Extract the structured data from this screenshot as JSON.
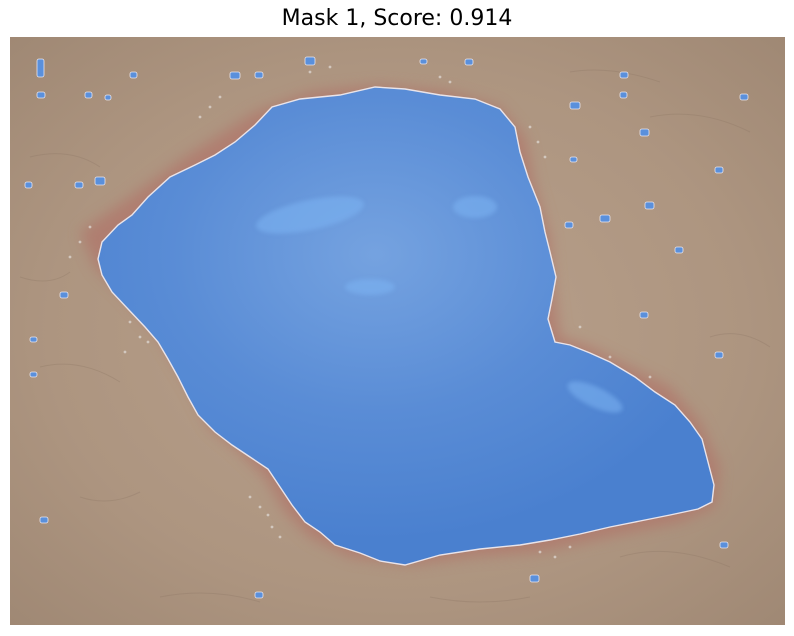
{
  "figure": {
    "title": "Mask 1, Score: 0.914"
  },
  "colors": {
    "skin_base": "#b39b86",
    "skin_light": "#c2ab97",
    "skin_dark": "#9c8470",
    "wound_rim": "#b0766a",
    "mask_fill": "#4f86d6",
    "mask_highlight": "#6aa3ea",
    "mask_outline": "#e9e4ea"
  },
  "mask": {
    "index": 1,
    "score": 0.914
  }
}
